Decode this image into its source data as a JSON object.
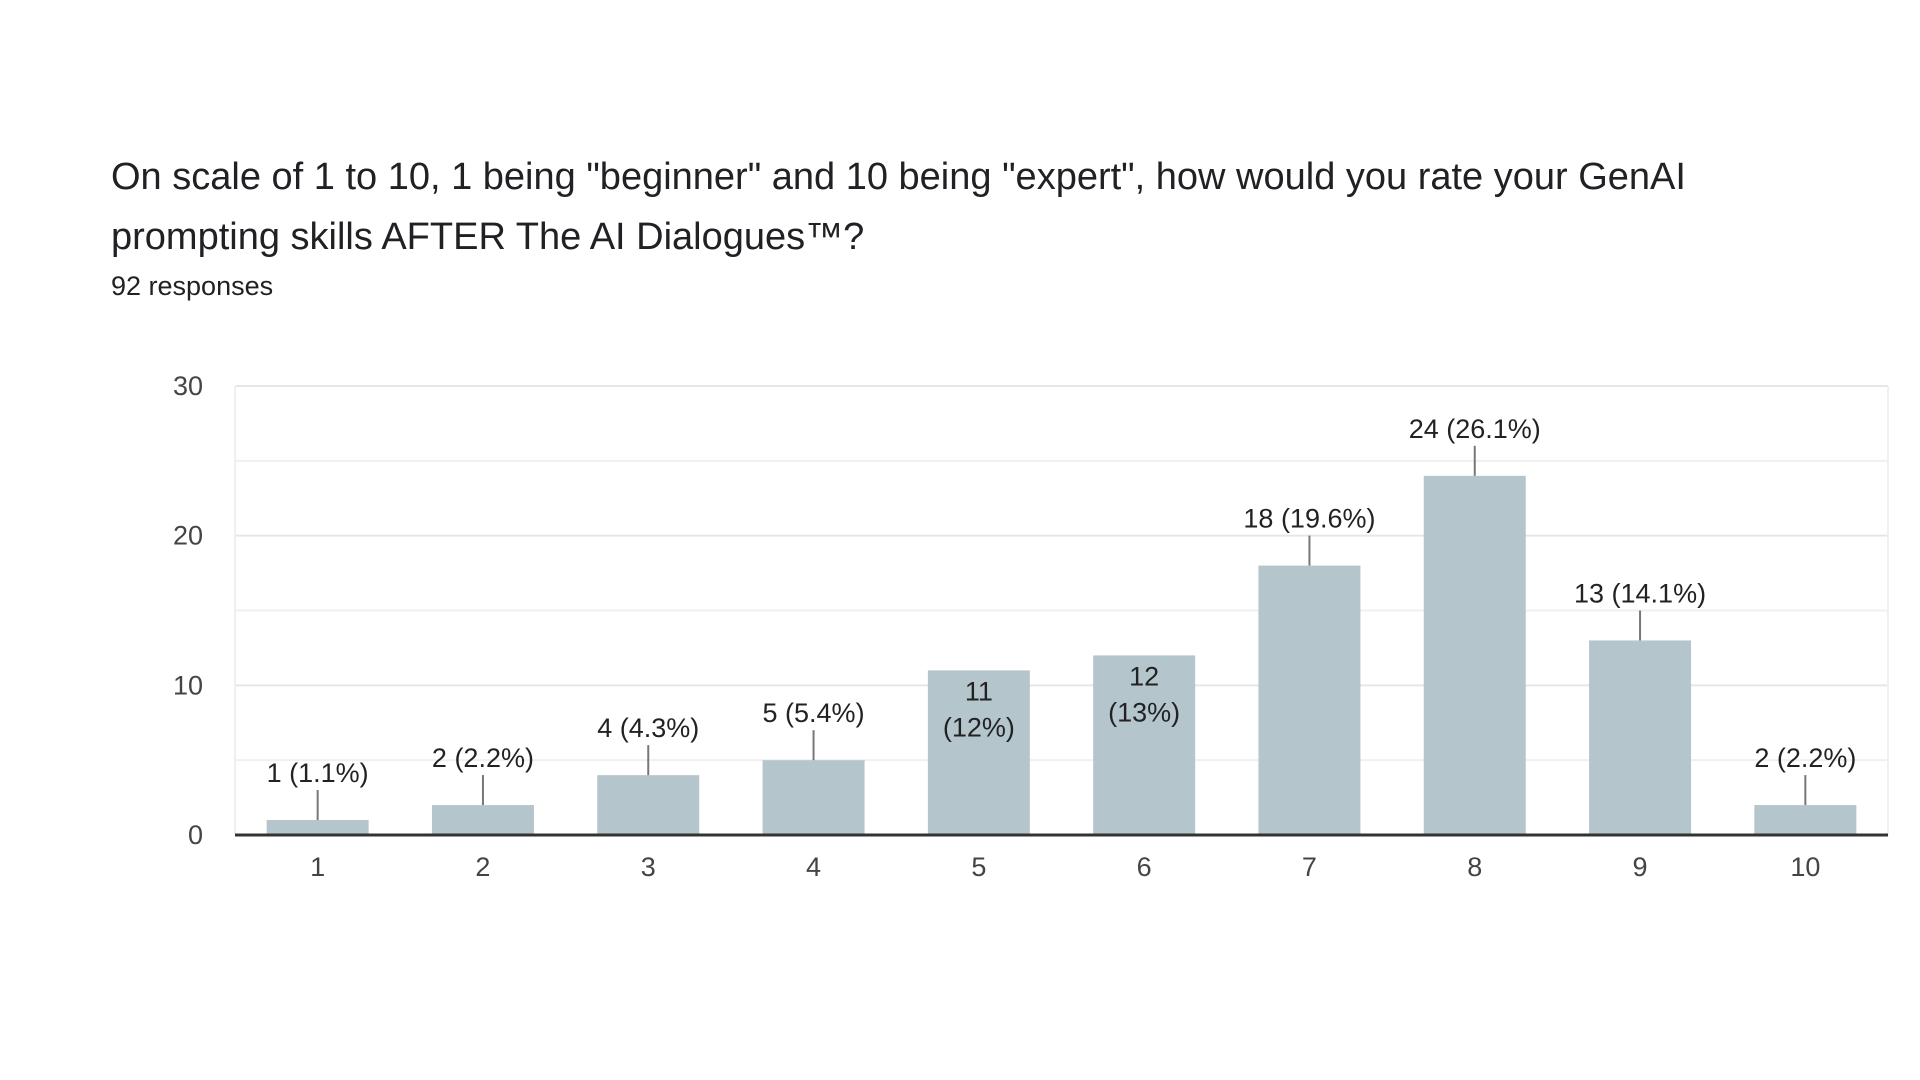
{
  "title_line1": "On scale of 1 to 10, 1 being \"beginner\" and 10 being \"expert\", how would you rate your GenAI",
  "title_line2": "prompting skills  AFTER The AI Dialogues™?",
  "responses_text": "92 responses",
  "colors": {
    "bar": "#b4c6cc",
    "label_leader": "#777777",
    "gridline": "#e6e6e6",
    "axis": "#333333"
  },
  "chart_data": {
    "type": "bar",
    "categories": [
      "1",
      "2",
      "3",
      "4",
      "5",
      "6",
      "7",
      "8",
      "9",
      "10"
    ],
    "values": [
      1,
      2,
      4,
      5,
      11,
      12,
      18,
      24,
      13,
      2
    ],
    "data_labels": [
      [
        "1 (1.1%)"
      ],
      [
        "2 (2.2%)"
      ],
      [
        "4 (4.3%)"
      ],
      [
        "5 (5.4%)"
      ],
      [
        "11",
        "(12%)"
      ],
      [
        "12",
        "(13%)"
      ],
      [
        "18 (19.6%)"
      ],
      [
        "24 (26.1%)"
      ],
      [
        "13 (14.1%)"
      ],
      [
        "2 (2.2%)"
      ]
    ],
    "ylim": [
      0,
      30
    ],
    "yticks": [
      0,
      10,
      20,
      30
    ],
    "minor_gridlines": [
      5,
      15,
      25
    ],
    "grid": true,
    "legend": "none"
  }
}
